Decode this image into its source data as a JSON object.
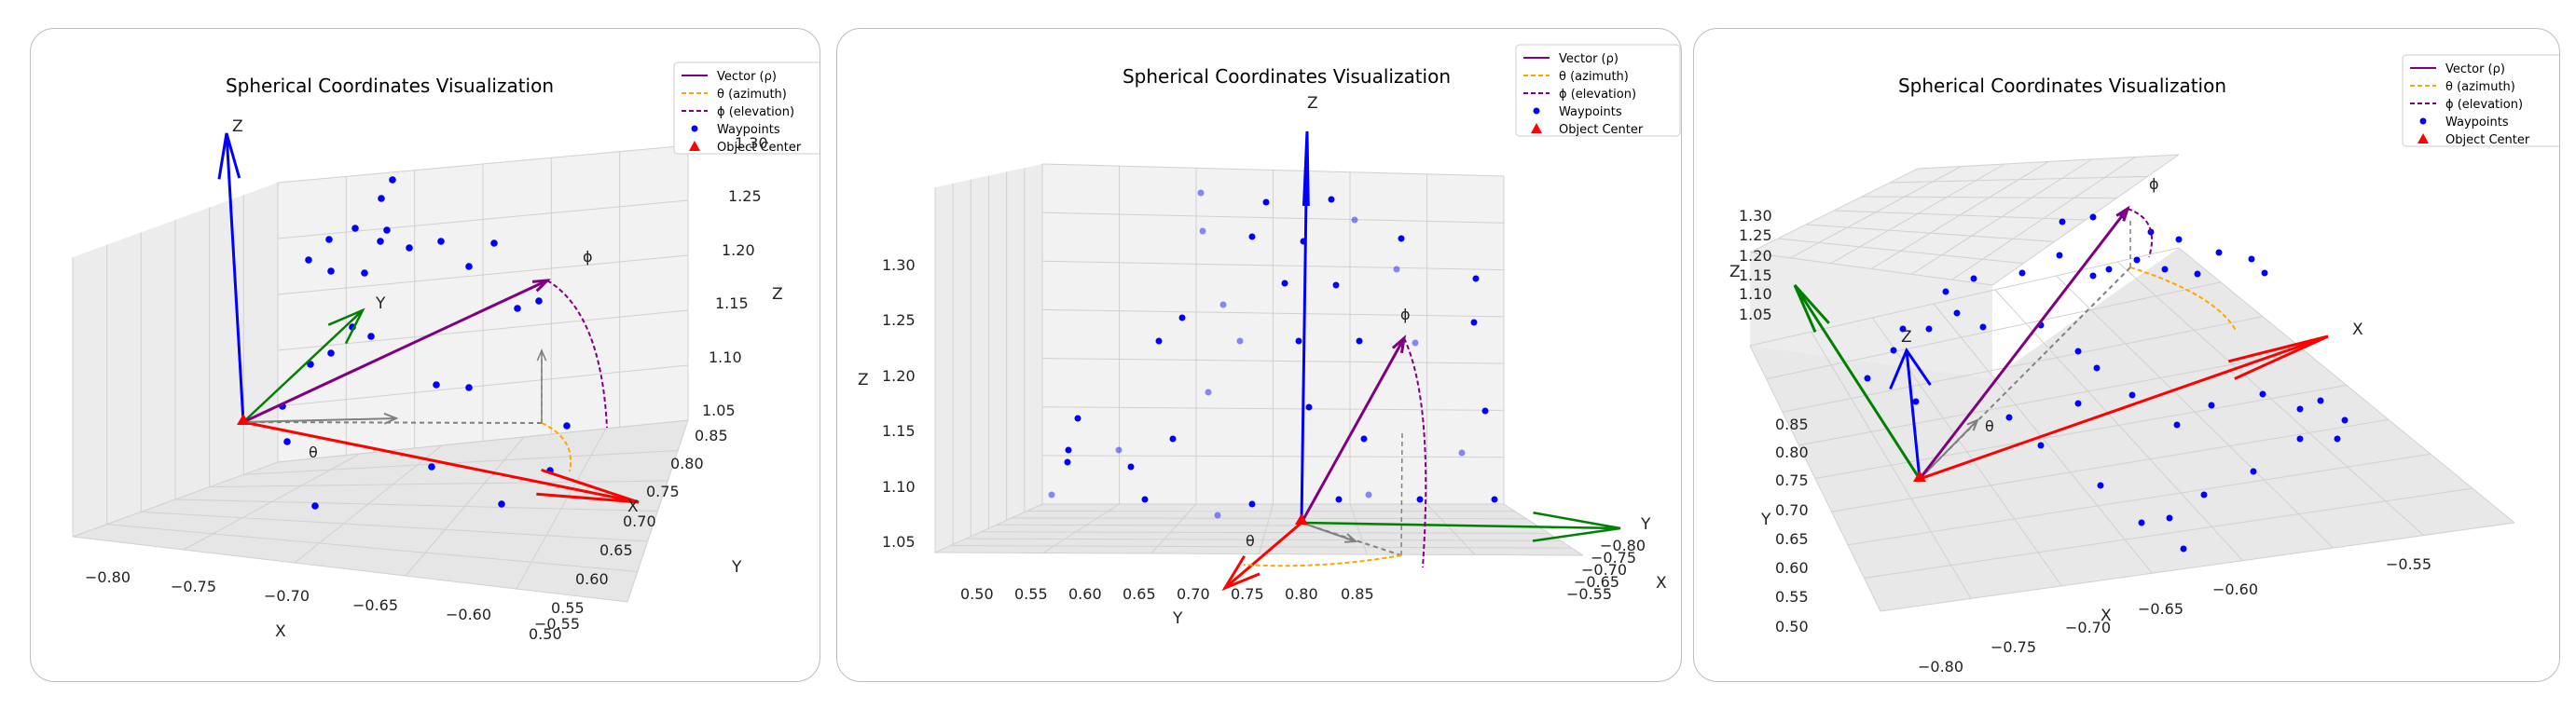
{
  "chart_data": [
    {
      "type": "scatter",
      "subtype": "3d-vector-diagram",
      "title": "Spherical Coordinates Visualization",
      "xlabel": "X",
      "ylabel": "Y",
      "zlabel": "Z",
      "x_ticks": [
        "−0.80",
        "−0.75",
        "−0.70",
        "−0.65",
        "−0.60",
        "−0.55"
      ],
      "y_ticks": [
        "0.50",
        "0.55",
        "0.60",
        "0.65",
        "0.70",
        "0.75",
        "0.80",
        "0.85"
      ],
      "z_ticks": [
        "1.05",
        "1.10",
        "1.15",
        "1.20",
        "1.25",
        "1.30"
      ],
      "legend_position": "top-right",
      "legend": [
        "Vector (ρ)",
        "θ (azimuth)",
        "ϕ (elevation)",
        "Waypoints",
        "Object Center"
      ],
      "annotations": {
        "x": "X",
        "y": "Y",
        "z": "Z",
        "theta": "θ",
        "phi": "ϕ"
      },
      "object_center": {
        "x": -0.8,
        "y": 0.78,
        "z": 1.02
      },
      "vector_tip": {
        "x": -0.57,
        "y": 0.8,
        "z": 1.25
      }
    },
    {
      "type": "scatter",
      "subtype": "3d-vector-diagram",
      "title": "Spherical Coordinates Visualization",
      "xlabel": "X",
      "ylabel": "Y",
      "zlabel": "Z",
      "x_ticks": [
        "−0.80",
        "−0.75",
        "−0.70",
        "−0.65",
        "−0.60",
        "−0.55"
      ],
      "y_ticks": [
        "0.50",
        "0.55",
        "0.60",
        "0.65",
        "0.70",
        "0.75",
        "0.80",
        "0.85"
      ],
      "z_ticks": [
        "1.05",
        "1.10",
        "1.15",
        "1.20",
        "1.25",
        "1.30"
      ],
      "legend_position": "top-right",
      "legend": [
        "Vector (ρ)",
        "θ (azimuth)",
        "ϕ (elevation)",
        "Waypoints",
        "Object Center"
      ],
      "annotations": {
        "x": "X",
        "y": "Y",
        "z": "Z",
        "theta": "θ",
        "phi": "ϕ"
      },
      "object_center": {
        "x": -0.8,
        "y": 0.78,
        "z": 1.02
      },
      "vector_tip": {
        "x": -0.57,
        "y": 0.8,
        "z": 1.25
      }
    },
    {
      "type": "scatter",
      "subtype": "3d-vector-diagram",
      "title": "Spherical Coordinates Visualization",
      "xlabel": "X",
      "ylabel": "Y",
      "zlabel": "Z",
      "x_ticks": [
        "−0.80",
        "−0.75",
        "−0.70",
        "−0.65",
        "−0.60",
        "−0.55"
      ],
      "y_ticks": [
        "0.50",
        "0.55",
        "0.60",
        "0.65",
        "0.70",
        "0.75",
        "0.80",
        "0.85"
      ],
      "z_ticks": [
        "1.05",
        "1.10",
        "1.15",
        "1.20",
        "1.25",
        "1.30"
      ],
      "legend_position": "top-right",
      "legend": [
        "Vector (ρ)",
        "θ (azimuth)",
        "ϕ (elevation)",
        "Waypoints",
        "Object Center"
      ],
      "annotations": {
        "x": "X",
        "y": "Y",
        "z": "Z",
        "theta": "θ",
        "phi": "ϕ"
      },
      "object_center": {
        "x": -0.8,
        "y": 0.78,
        "z": 1.02
      },
      "vector_tip": {
        "x": -0.57,
        "y": 0.8,
        "z": 1.25
      }
    }
  ],
  "colors": {
    "vector": "#800080",
    "theta": "#ffa500",
    "phi": "#800080",
    "waypoints": "#0000ff",
    "object_center": "#ff0000",
    "x_axis": "#ff0000",
    "y_axis": "#008000",
    "z_axis": "#0000ff",
    "projection": "#808080"
  }
}
